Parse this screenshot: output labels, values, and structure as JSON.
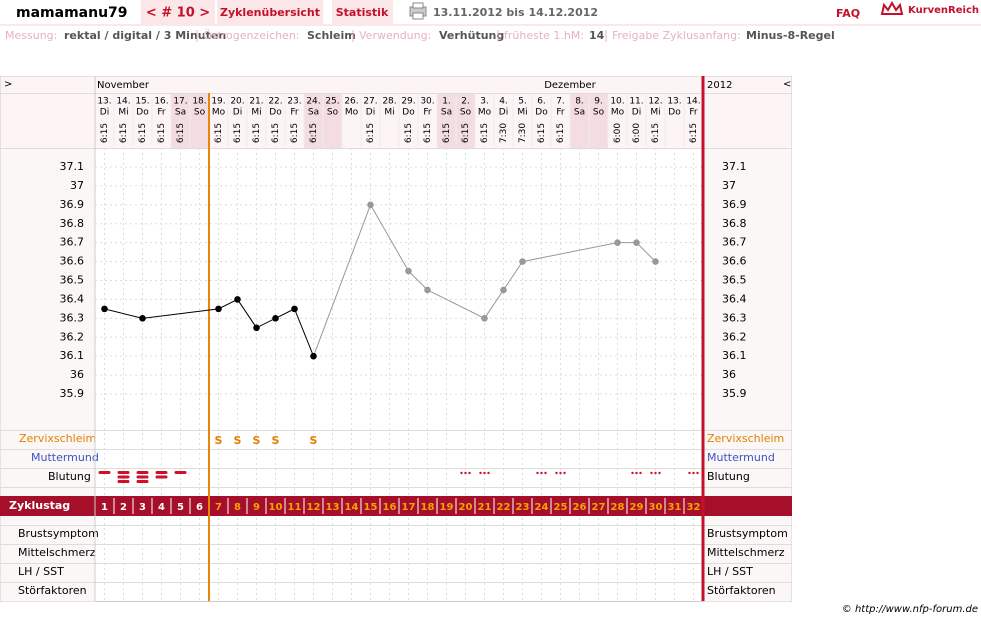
{
  "header": {
    "user": "mamamanu79",
    "cycle_nav": "< # 10 >",
    "tabs": [
      "Zyklenübersicht",
      "Statistik"
    ],
    "period": "13.11.2012 bis 14.12.2012",
    "faq": "FAQ",
    "brand": "KurvenReich"
  },
  "info": [
    {
      "label": "Messung:",
      "value": "rektal / digital / 3 Minuten"
    },
    {
      "label": "Östrogenzeichen:",
      "value": "Schleim"
    },
    {
      "label": "Verwendung:",
      "value": "Verhütung"
    },
    {
      "label": "früheste 1.hM:",
      "value": "14"
    },
    {
      "label": "Freigabe Zyklusanfang:",
      "value": "Minus-8-Regel"
    }
  ],
  "chart_data": {
    "type": "line",
    "nav_left": ">",
    "nav_right": "<",
    "months": [
      "November",
      "Dezember"
    ],
    "year": "2012",
    "dates": [
      "13.",
      "14.",
      "15.",
      "16.",
      "17.",
      "18.",
      "19.",
      "20.",
      "21.",
      "22.",
      "23.",
      "24.",
      "25.",
      "26.",
      "27.",
      "28.",
      "29.",
      "30.",
      "1.",
      "2.",
      "3.",
      "4.",
      "5.",
      "6.",
      "7.",
      "8.",
      "9.",
      "10.",
      "11.",
      "12.",
      "13.",
      "14."
    ],
    "weekdays": [
      "Di",
      "Mi",
      "Do",
      "Fr",
      "Sa",
      "So",
      "Mo",
      "Di",
      "Mi",
      "Do",
      "Fr",
      "Sa",
      "So",
      "Mo",
      "Di",
      "Mi",
      "Do",
      "Fr",
      "Sa",
      "So",
      "Mo",
      "Di",
      "Mi",
      "Do",
      "Fr",
      "Sa",
      "So",
      "Mo",
      "Di",
      "Mi",
      "Do",
      "Fr"
    ],
    "times": [
      "6:15",
      "6:15",
      "6:15",
      "6:15",
      "6:15",
      null,
      "6:15",
      "6:15",
      "6:15",
      "6:15",
      "6:15",
      "6:15",
      null,
      null,
      "6:15",
      null,
      "6:15",
      "6:15",
      "6:15",
      "6:15",
      "6:15",
      "7:30",
      "7:30",
      "6:15",
      "6:15",
      null,
      null,
      "6:00",
      "6:00",
      "6:15",
      null,
      "6:15"
    ],
    "cycle_label": "Zyklustag",
    "cycle_days": [
      1,
      2,
      3,
      4,
      5,
      6,
      7,
      8,
      9,
      10,
      11,
      12,
      13,
      14,
      15,
      16,
      17,
      18,
      19,
      20,
      21,
      22,
      23,
      24,
      25,
      26,
      27,
      28,
      29,
      30,
      31,
      32
    ],
    "x": [
      1,
      3,
      7,
      8,
      9,
      10,
      11,
      12,
      15,
      17,
      18,
      21,
      22,
      23,
      28,
      29,
      30
    ],
    "values": [
      36.35,
      36.3,
      36.35,
      36.4,
      36.25,
      36.3,
      36.35,
      36.1,
      36.9,
      36.55,
      36.45,
      36.3,
      36.45,
      36.6,
      36.7,
      36.7,
      36.6
    ],
    "point_colors": [
      "#000000",
      "#000000",
      "#000000",
      "#000000",
      "#000000",
      "#000000",
      "#000000",
      "#000000",
      "#999999",
      "#999999",
      "#999999",
      "#999999",
      "#999999",
      "#999999",
      "#999999",
      "#999999",
      "#999999"
    ],
    "ylim": [
      35.9,
      37.1
    ],
    "yticks": [
      37.1,
      37,
      36.9,
      36.8,
      36.7,
      36.6,
      36.5,
      36.4,
      36.3,
      36.2,
      36.1,
      36,
      35.9
    ],
    "grid": true,
    "marker_after_day": 6,
    "zervixschleim": {
      "label": "Zervixschleim",
      "symbol": "S",
      "days": [
        7,
        8,
        9,
        10,
        12
      ]
    },
    "muttermund": {
      "label": "Muttermund"
    },
    "blutung": {
      "label": "Blutung",
      "dashes": [
        1,
        3,
        3,
        2,
        1
      ],
      "spotting_days": [
        20,
        21,
        24,
        25,
        29,
        30,
        32
      ]
    },
    "lower_rows": [
      "Brustsymptom",
      "Mittelschmerz",
      "LH / SST",
      "Störfaktoren"
    ]
  },
  "footer": "© http://www.nfp-forum.de"
}
